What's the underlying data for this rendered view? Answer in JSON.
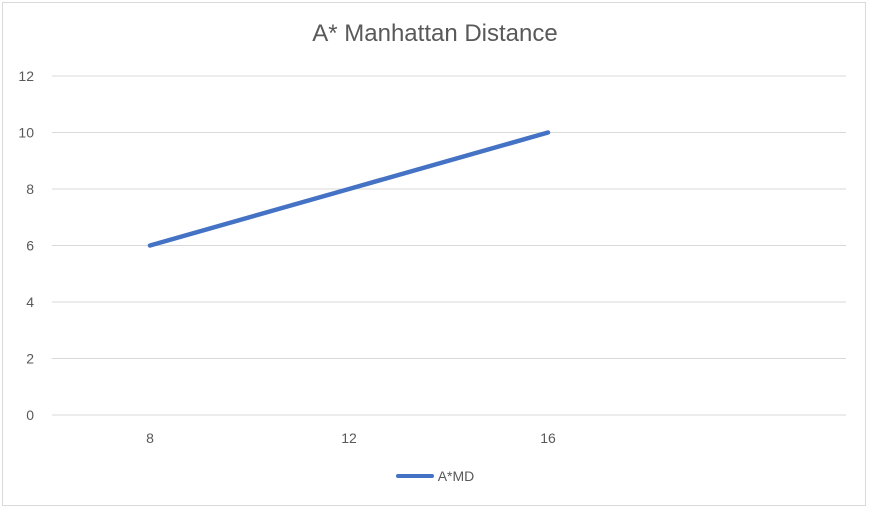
{
  "chart_data": {
    "type": "line",
    "title": "A* Manhattan Distance",
    "xlabel": "",
    "ylabel": "",
    "x": [
      8,
      12,
      16
    ],
    "x_tick_labels": [
      "8",
      "12",
      "16"
    ],
    "y_ticks": [
      0,
      2,
      4,
      6,
      8,
      10,
      12
    ],
    "y_tick_labels": [
      "0",
      "2",
      "4",
      "6",
      "8",
      "10",
      "12"
    ],
    "ylim": [
      0,
      12
    ],
    "grid": true,
    "legend_position": "bottom",
    "series": [
      {
        "name": "A*MD",
        "values": [
          6,
          8,
          10
        ],
        "color": "#4472c4"
      }
    ]
  }
}
